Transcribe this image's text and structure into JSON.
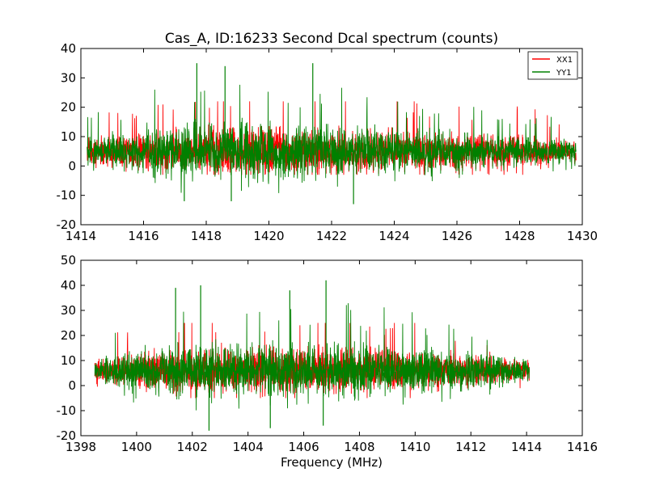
{
  "chart_data": [
    {
      "type": "line",
      "title": "Cas_A, ID:16233 Second Dcal spectrum (counts)",
      "xlabel": "",
      "ylabel": "",
      "xlim": [
        1414,
        1430
      ],
      "ylim": [
        -20,
        40
      ],
      "xticks": [
        1414,
        1416,
        1418,
        1420,
        1422,
        1424,
        1426,
        1428,
        1430
      ],
      "yticks": [
        -20,
        -10,
        0,
        10,
        20,
        30,
        40
      ],
      "x_extent": [
        1414.2,
        1429.8
      ],
      "legend_position": "upper-right",
      "series": [
        {
          "name": "XX1",
          "color": "#ff0000",
          "baseline": 5,
          "noise_envelope": [
            [
              1414.2,
              6
            ],
            [
              1416.0,
              9
            ],
            [
              1418.0,
              11
            ],
            [
              1422.0,
              11
            ],
            [
              1424.0,
              9
            ],
            [
              1426.0,
              9
            ],
            [
              1428.0,
              8
            ],
            [
              1429.8,
              5
            ]
          ],
          "peak_max": 22,
          "trough_min": -3
        },
        {
          "name": "YY1",
          "color": "#008000",
          "baseline": 5,
          "noise_envelope": [
            [
              1414.2,
              6
            ],
            [
              1416.0,
              10
            ],
            [
              1417.5,
              13
            ],
            [
              1419.0,
              13
            ],
            [
              1422.0,
              12
            ],
            [
              1424.0,
              10
            ],
            [
              1426.0,
              9
            ],
            [
              1428.0,
              7
            ],
            [
              1429.8,
              5
            ]
          ],
          "peak_max": 35,
          "trough_min": -13
        }
      ],
      "notable_spikes": [
        [
          1417.7,
          35
        ],
        [
          1421.4,
          35
        ],
        [
          1418.6,
          34
        ],
        [
          1422.7,
          -13
        ],
        [
          1417.3,
          -12
        ],
        [
          1418.8,
          -12
        ]
      ]
    },
    {
      "type": "line",
      "title": "",
      "xlabel": "Frequency (MHz)",
      "ylabel": "",
      "xlim": [
        1398,
        1416
      ],
      "ylim": [
        -20,
        50
      ],
      "xticks": [
        1398,
        1400,
        1402,
        1404,
        1406,
        1408,
        1410,
        1412,
        1414,
        1416
      ],
      "yticks": [
        -20,
        -10,
        0,
        10,
        20,
        30,
        40,
        50
      ],
      "x_extent": [
        1398.5,
        1414.1
      ],
      "series": [
        {
          "name": "XX1",
          "color": "#ff0000",
          "baseline": 6,
          "noise_envelope": [
            [
              1398.5,
              6
            ],
            [
              1400.0,
              10
            ],
            [
              1402.0,
              12
            ],
            [
              1406.0,
              12
            ],
            [
              1410.0,
              11
            ],
            [
              1412.0,
              9
            ],
            [
              1414.1,
              6
            ]
          ],
          "peak_max": 25,
          "trough_min": -5
        },
        {
          "name": "YY1",
          "color": "#008000",
          "baseline": 6,
          "noise_envelope": [
            [
              1398.5,
              6
            ],
            [
              1400.0,
              11
            ],
            [
              1401.5,
              14
            ],
            [
              1404.0,
              14
            ],
            [
              1407.0,
              14
            ],
            [
              1410.0,
              12
            ],
            [
              1412.0,
              10
            ],
            [
              1414.1,
              6
            ]
          ],
          "peak_max": 42,
          "trough_min": -18
        }
      ],
      "notable_spikes": [
        [
          1406.8,
          42
        ],
        [
          1402.3,
          40
        ],
        [
          1401.4,
          39
        ],
        [
          1405.5,
          38
        ],
        [
          1402.6,
          -18
        ],
        [
          1404.8,
          -17
        ],
        [
          1406.7,
          -16
        ]
      ]
    }
  ]
}
